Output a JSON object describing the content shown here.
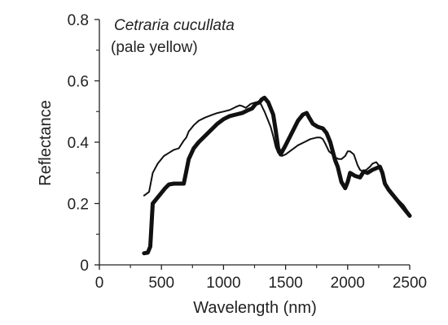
{
  "chart_data": {
    "type": "line",
    "xlabel": "Wavelength (nm)",
    "ylabel": "Reflectance",
    "xlim": [
      0,
      2500
    ],
    "ylim": [
      0,
      0.8
    ],
    "x_ticks": [
      0,
      500,
      1000,
      1500,
      2000,
      2500
    ],
    "x_tick_labels": [
      "0",
      "500",
      "1000",
      "1500",
      "2000",
      "2500"
    ],
    "y_ticks": [
      0,
      0.2,
      0.4,
      0.6,
      0.8
    ],
    "y_tick_labels": [
      "0",
      "0.2",
      "0.4",
      "0.6",
      "0.8"
    ],
    "grid": false,
    "annotation": {
      "species": "Cetraria cucullata",
      "color_note": "(pale yellow)"
    },
    "series": [
      {
        "style": "thin",
        "color": "#111111",
        "x": [
          360,
          400,
          430,
          470,
          520,
          560,
          600,
          640,
          680,
          700,
          720,
          760,
          800,
          850,
          900,
          950,
          1000,
          1050,
          1100,
          1130,
          1150,
          1180,
          1220,
          1260,
          1300,
          1330,
          1360,
          1380,
          1400,
          1420,
          1440,
          1470,
          1500,
          1550,
          1600,
          1650,
          1700,
          1750,
          1780,
          1800,
          1820,
          1850,
          1880,
          1900,
          1930,
          1950,
          1980,
          2000,
          2020,
          2050,
          2080,
          2100,
          2120,
          2150,
          2180,
          2200,
          2230,
          2260,
          2280,
          2300,
          2330,
          2360,
          2400,
          2450,
          2500
        ],
        "y": [
          0.226,
          0.238,
          0.3,
          0.33,
          0.355,
          0.365,
          0.375,
          0.38,
          0.405,
          0.415,
          0.435,
          0.455,
          0.47,
          0.48,
          0.488,
          0.495,
          0.5,
          0.505,
          0.515,
          0.52,
          0.518,
          0.512,
          0.525,
          0.53,
          0.525,
          0.5,
          0.47,
          0.45,
          0.42,
          0.385,
          0.365,
          0.355,
          0.36,
          0.375,
          0.39,
          0.4,
          0.41,
          0.415,
          0.415,
          0.41,
          0.395,
          0.37,
          0.36,
          0.35,
          0.345,
          0.345,
          0.355,
          0.37,
          0.37,
          0.36,
          0.325,
          0.31,
          0.305,
          0.31,
          0.32,
          0.33,
          0.335,
          0.32,
          0.29,
          0.27,
          0.25,
          0.235,
          0.215,
          0.195,
          0.165
        ]
      },
      {
        "style": "thick",
        "color": "#111111",
        "x": [
          360,
          390,
          410,
          430,
          460,
          500,
          530,
          560,
          600,
          640,
          680,
          700,
          720,
          760,
          800,
          850,
          900,
          950,
          1000,
          1050,
          1100,
          1150,
          1200,
          1230,
          1260,
          1290,
          1310,
          1330,
          1360,
          1400,
          1420,
          1440,
          1460,
          1500,
          1550,
          1600,
          1640,
          1670,
          1690,
          1720,
          1760,
          1800,
          1830,
          1860,
          1880,
          1900,
          1920,
          1950,
          1980,
          2000,
          2020,
          2060,
          2100,
          2130,
          2160,
          2200,
          2230,
          2260,
          2280,
          2300,
          2330,
          2360,
          2400,
          2450,
          2500
        ],
        "y": [
          0.038,
          0.04,
          0.06,
          0.2,
          0.215,
          0.235,
          0.25,
          0.262,
          0.265,
          0.265,
          0.265,
          0.305,
          0.345,
          0.38,
          0.4,
          0.42,
          0.44,
          0.46,
          0.475,
          0.485,
          0.49,
          0.495,
          0.505,
          0.51,
          0.525,
          0.53,
          0.54,
          0.545,
          0.53,
          0.49,
          0.44,
          0.38,
          0.36,
          0.39,
          0.43,
          0.47,
          0.49,
          0.495,
          0.48,
          0.46,
          0.45,
          0.445,
          0.43,
          0.4,
          0.37,
          0.34,
          0.32,
          0.27,
          0.25,
          0.27,
          0.3,
          0.29,
          0.285,
          0.305,
          0.3,
          0.31,
          0.315,
          0.32,
          0.3,
          0.265,
          0.245,
          0.23,
          0.21,
          0.185,
          0.16
        ]
      }
    ]
  }
}
